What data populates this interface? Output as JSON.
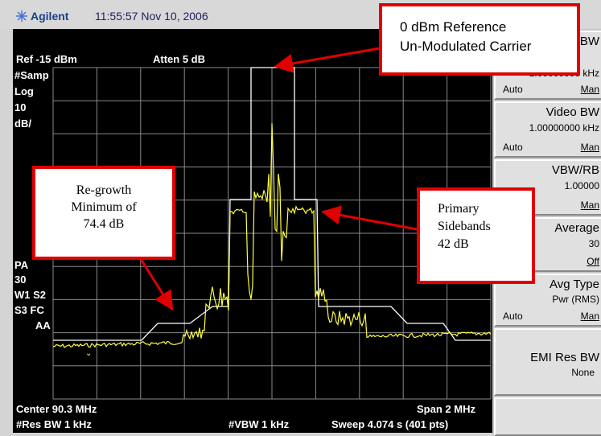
{
  "header": {
    "brand": "Agilent",
    "timestamp": "11:55:57  Nov 10, 2006"
  },
  "screen": {
    "ref": "Ref -15 dBm",
    "atten": "Atten 5 dB",
    "left_labels": [
      "#Samp",
      "Log",
      "10",
      "dB/"
    ],
    "left_labels_lower": [
      "PA",
      "30",
      "W1  S2",
      "S3  FC",
      "AA"
    ],
    "center": "Center 90.3 MHz",
    "span": "Span 2 MHz",
    "res_bw": "#Res BW 1 kHz",
    "vbw": "#VBW 1 kHz",
    "sweep": "Sweep 4.074 s (401 pts)"
  },
  "softkeys": [
    {
      "title": "BW",
      "value": "1.00000000 kHz",
      "auto": "Auto",
      "man": "Man"
    },
    {
      "title": "Video BW",
      "value": "1.00000000 kHz",
      "auto": "Auto",
      "man": "Man"
    },
    {
      "title": "VBW/RB",
      "value": "1.00000",
      "auto": "",
      "man": "Man"
    },
    {
      "title": "Average",
      "value": "30",
      "auto": "",
      "man": "Off"
    },
    {
      "title": "Avg Type",
      "value": "Pwr (RMS)",
      "auto": "Auto",
      "man": "Man"
    },
    {
      "title": "EMI Res BW",
      "value": "None",
      "auto": "",
      "man": ""
    }
  ],
  "callouts": {
    "ref_line1": "0 dBm Reference",
    "ref_line2": "Un-Modulated Carrier",
    "regrowth_line1": "Re-growth",
    "regrowth_line2": "Minimum of",
    "regrowth_line3": "74.4 dB",
    "primary_line1": "Primary",
    "primary_line2": "Sidebands",
    "primary_line3": "42 dB"
  },
  "colors": {
    "trace": "#ffff40",
    "mask": "#ffffff",
    "grid": "#8a8a8a",
    "callout_border": "#e00000"
  }
}
